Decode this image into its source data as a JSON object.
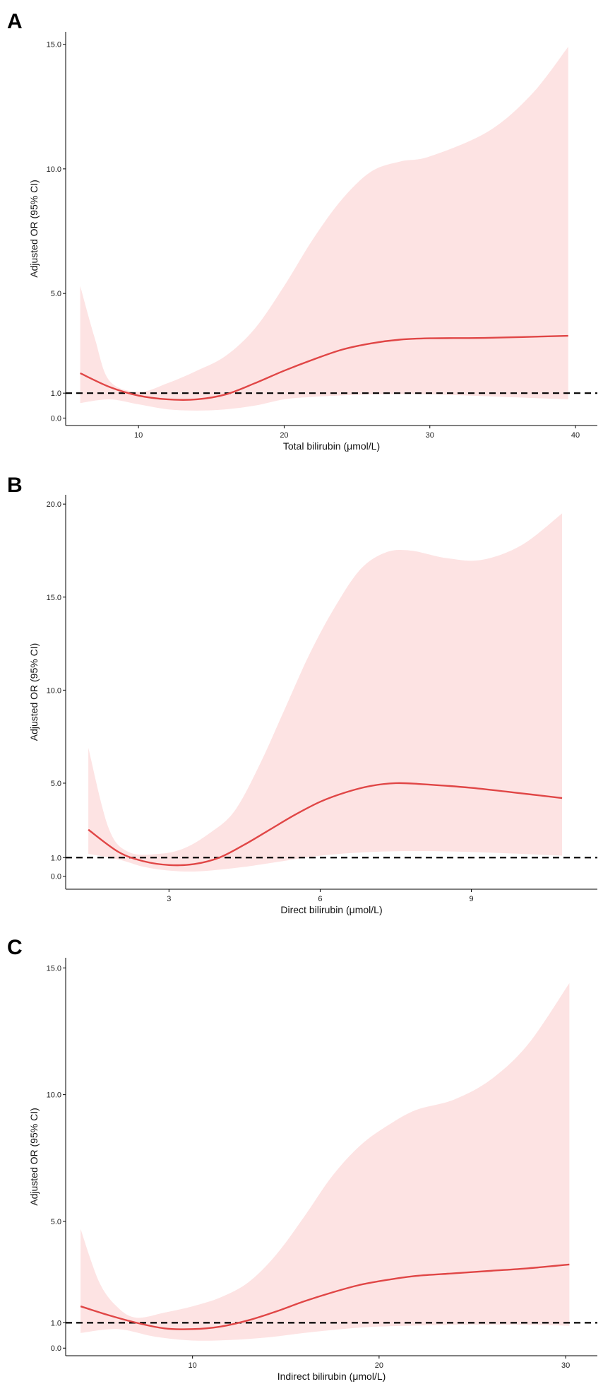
{
  "colors": {
    "line": "#e04646",
    "band": "#fde3e3",
    "axis": "#000000",
    "reference": "#000000"
  },
  "chart_data": [
    {
      "type": "line",
      "panel_label": "A",
      "xlabel": "Total bilirubin (μmol/L)",
      "ylabel": "Adjusted OR (95% CI)",
      "xlim": [
        5,
        41.5
      ],
      "ylim": [
        -0.3,
        15.5
      ],
      "x_ticks": [
        10,
        20,
        30,
        40
      ],
      "x_tick_labels": [
        "10",
        "20",
        "30",
        "40"
      ],
      "y_ticks": [
        0,
        1,
        5,
        10,
        15
      ],
      "y_tick_labels": [
        "0.0",
        "1.0",
        "5.0",
        "10.0",
        "15.0"
      ],
      "reference_y": 1.0,
      "series": [
        {
          "name": "Adjusted OR",
          "x": [
            6,
            8,
            10,
            12,
            14,
            16,
            18,
            20,
            22,
            24,
            26,
            28,
            30,
            34,
            39.5
          ],
          "values": [
            1.8,
            1.25,
            0.9,
            0.75,
            0.75,
            0.95,
            1.4,
            1.9,
            2.35,
            2.75,
            3.0,
            3.15,
            3.2,
            3.22,
            3.3
          ]
        },
        {
          "name": "95% CI upper",
          "x": [
            6,
            7,
            8,
            10,
            12,
            14,
            16,
            18,
            20,
            22,
            24,
            26,
            28,
            30,
            34,
            37,
            39.5
          ],
          "values": [
            5.3,
            3.2,
            1.5,
            1.05,
            1.4,
            1.9,
            2.5,
            3.6,
            5.3,
            7.2,
            8.8,
            9.9,
            10.3,
            10.5,
            11.5,
            13.0,
            14.9
          ]
        },
        {
          "name": "95% CI lower",
          "x": [
            6,
            8,
            10,
            12,
            14,
            16,
            18,
            20,
            22,
            26,
            30,
            35,
            39.5
          ],
          "values": [
            0.6,
            0.75,
            0.55,
            0.35,
            0.3,
            0.35,
            0.5,
            0.75,
            0.85,
            0.95,
            0.95,
            0.85,
            0.75
          ]
        }
      ]
    },
    {
      "type": "line",
      "panel_label": "B",
      "xlabel": "Direct bilirubin (μmol/L)",
      "ylabel": "Adjusted OR (95% CI)",
      "xlim": [
        0.95,
        11.5
      ],
      "ylim": [
        -0.7,
        20.5
      ],
      "x_ticks": [
        3,
        6,
        9
      ],
      "x_tick_labels": [
        "3",
        "6",
        "9"
      ],
      "y_ticks": [
        0,
        1,
        5,
        10,
        15,
        20
      ],
      "y_tick_labels": [
        "0.0",
        "1.0",
        "5.0",
        "10.0",
        "15.0",
        "20.0"
      ],
      "reference_y": 1.0,
      "series": [
        {
          "name": "Adjusted OR",
          "x": [
            1.4,
            2,
            2.5,
            3,
            3.5,
            4,
            4.5,
            5,
            5.5,
            6,
            6.5,
            7,
            7.5,
            8,
            9,
            10,
            10.8
          ],
          "values": [
            2.5,
            1.3,
            0.8,
            0.6,
            0.65,
            1.0,
            1.7,
            2.5,
            3.3,
            4.0,
            4.5,
            4.85,
            5.0,
            4.95,
            4.75,
            4.45,
            4.2
          ]
        },
        {
          "name": "95% CI upper",
          "x": [
            1.4,
            1.8,
            2.2,
            2.8,
            3.3,
            3.8,
            4.3,
            4.8,
            5.3,
            5.8,
            6.3,
            6.8,
            7.3,
            7.8,
            8.5,
            9.2,
            10,
            10.8
          ],
          "values": [
            6.9,
            2.6,
            1.3,
            1.2,
            1.5,
            2.3,
            3.5,
            6.0,
            9.0,
            12.0,
            14.5,
            16.5,
            17.4,
            17.5,
            17.1,
            17.0,
            17.8,
            19.5
          ]
        },
        {
          "name": "95% CI lower",
          "x": [
            1.4,
            2,
            2.5,
            3,
            3.5,
            4,
            4.5,
            5,
            6,
            7,
            8,
            9,
            10,
            10.8
          ],
          "values": [
            1.2,
            0.9,
            0.5,
            0.3,
            0.25,
            0.35,
            0.5,
            0.7,
            1.1,
            1.3,
            1.35,
            1.3,
            1.2,
            1.1
          ]
        }
      ]
    },
    {
      "type": "line",
      "panel_label": "C",
      "xlabel": "Indirect bilirubin (μmol/L)",
      "ylabel": "Adjusted OR (95% CI)",
      "xlim": [
        3.2,
        31.7
      ],
      "ylim": [
        -0.3,
        15.4
      ],
      "x_ticks": [
        10,
        20,
        30
      ],
      "x_tick_labels": [
        "10",
        "20",
        "30"
      ],
      "y_ticks": [
        0,
        1,
        5,
        10,
        15
      ],
      "y_tick_labels": [
        "0.0",
        "1.0",
        "5.0",
        "10.0",
        "15.0"
      ],
      "reference_y": 1.0,
      "series": [
        {
          "name": "Adjusted OR",
          "x": [
            4,
            5.5,
            7,
            8.5,
            10,
            11.5,
            13,
            14.5,
            16,
            17.5,
            19,
            20.5,
            22,
            24,
            26,
            28,
            30.2
          ],
          "values": [
            1.65,
            1.3,
            1.0,
            0.78,
            0.75,
            0.85,
            1.1,
            1.45,
            1.85,
            2.2,
            2.5,
            2.7,
            2.85,
            2.95,
            3.05,
            3.15,
            3.3
          ]
        },
        {
          "name": "95% CI upper",
          "x": [
            4,
            5,
            6,
            7,
            8.5,
            10,
            11.5,
            13,
            14.5,
            16,
            17.5,
            19,
            20.5,
            22,
            24,
            26,
            28,
            30.2
          ],
          "values": [
            4.7,
            2.6,
            1.6,
            1.2,
            1.4,
            1.65,
            2.0,
            2.6,
            3.7,
            5.2,
            6.8,
            8.0,
            8.8,
            9.4,
            9.8,
            10.6,
            12.0,
            14.4
          ]
        },
        {
          "name": "95% CI lower",
          "x": [
            4,
            6,
            8,
            10,
            12,
            14,
            16,
            18,
            20,
            24,
            28,
            30.2
          ],
          "values": [
            0.6,
            0.75,
            0.45,
            0.3,
            0.32,
            0.42,
            0.6,
            0.75,
            0.85,
            0.92,
            0.92,
            0.88
          ]
        }
      ]
    }
  ]
}
